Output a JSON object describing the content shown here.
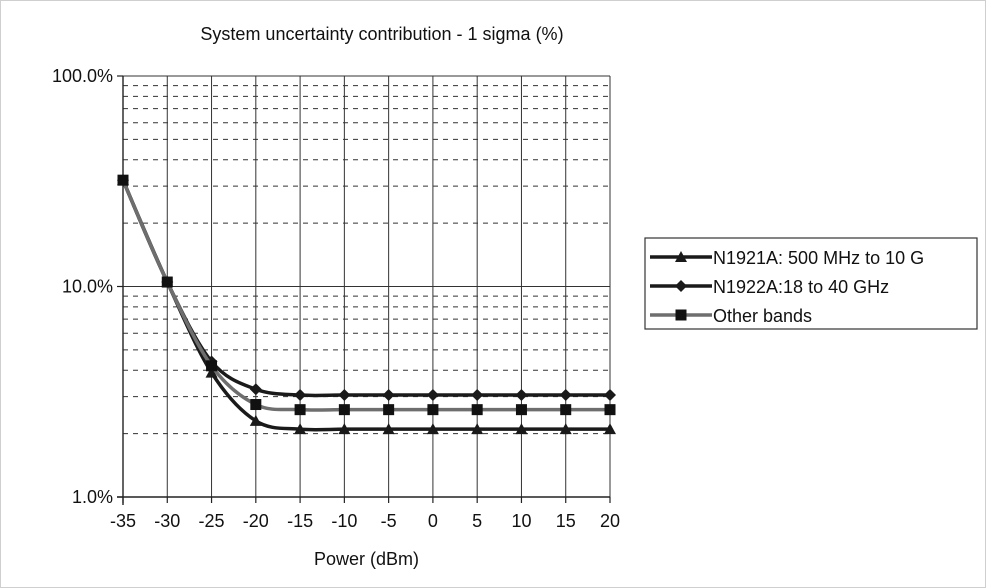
{
  "chart_data": {
    "type": "line",
    "title": "System uncertainty contribution - 1 sigma (%)",
    "xlabel": "Power (dBm)",
    "ylabel": "",
    "x": [
      -35,
      -30,
      -25,
      -20,
      -15,
      -10,
      -5,
      0,
      5,
      10,
      15,
      20
    ],
    "xlim": [
      -35,
      20
    ],
    "ylim": [
      1.0,
      100.0
    ],
    "yscale": "log",
    "grid": true,
    "x_tick_labels": [
      "-35",
      "-30",
      "-25",
      "-20",
      "-15",
      "-10",
      "-5",
      "0",
      "5",
      "10",
      "15",
      "20"
    ],
    "y_tick_labels": [
      {
        "value": 1.0,
        "label": "1.0%"
      },
      {
        "value": 10.0,
        "label": "10.0%"
      },
      {
        "value": 100.0,
        "label": "100.0%"
      }
    ],
    "legend_position": "right",
    "series": [
      {
        "name": "N1921A: 500 MHz to 10 G",
        "marker": "triangle",
        "color": "#1a1a1a",
        "values": [
          32.0,
          10.5,
          3.9,
          2.3,
          2.1,
          2.1,
          2.1,
          2.1,
          2.1,
          2.1,
          2.1,
          2.1
        ]
      },
      {
        "name": "N1922A:18 to 40 GHz",
        "marker": "diamond",
        "color": "#1a1a1a",
        "values": [
          32.0,
          10.5,
          4.4,
          3.25,
          3.05,
          3.05,
          3.05,
          3.05,
          3.05,
          3.05,
          3.05,
          3.05
        ]
      },
      {
        "name": "Other bands",
        "marker": "square",
        "color": "#6e6e6e",
        "values": [
          32.0,
          10.5,
          4.2,
          2.75,
          2.6,
          2.6,
          2.6,
          2.6,
          2.6,
          2.6,
          2.6,
          2.6
        ]
      }
    ]
  }
}
